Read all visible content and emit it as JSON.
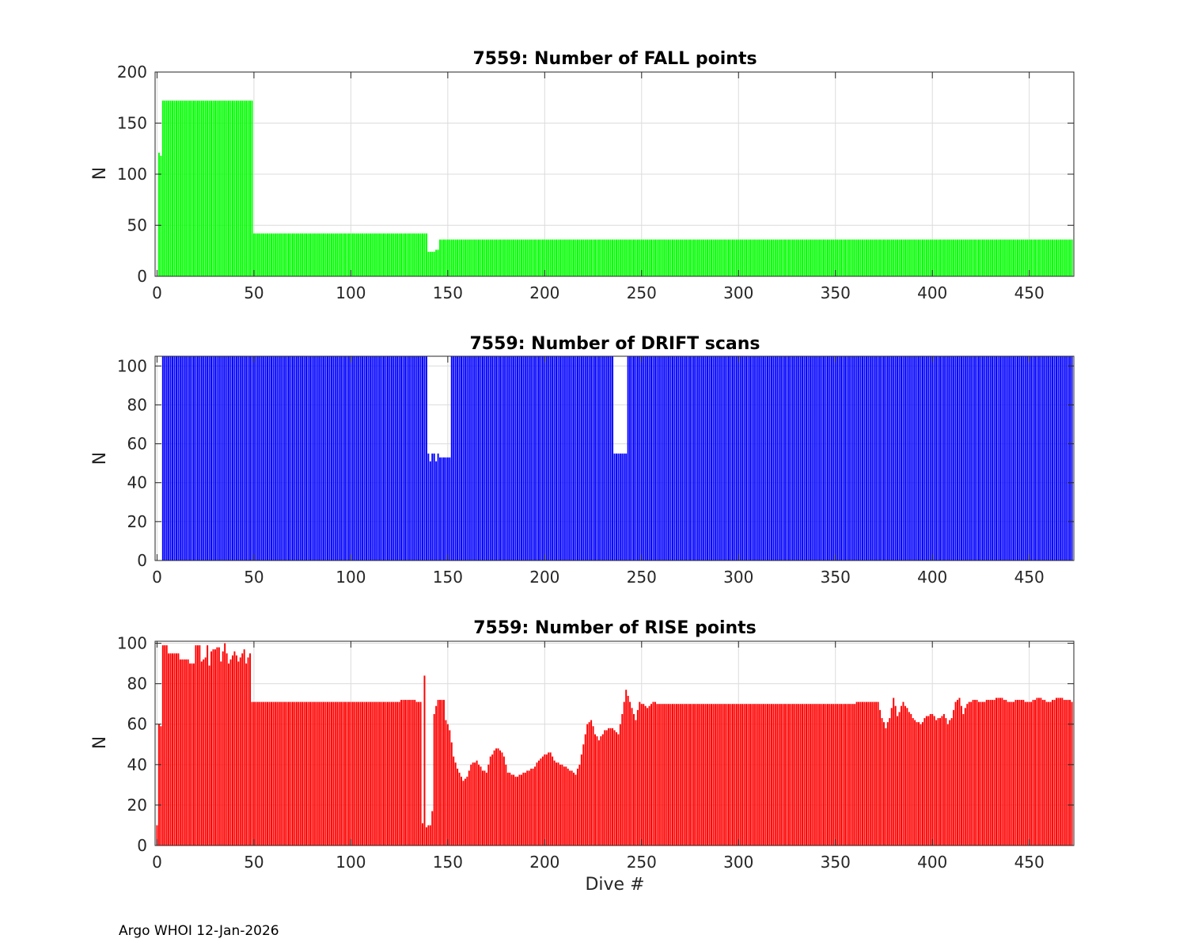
{
  "footer": "Argo WHOI 12-Jan-2026",
  "chart_data": [
    {
      "type": "bar",
      "title": "7559: Number of FALL points",
      "xlabel": "",
      "ylabel": "N",
      "xlim": [
        -1,
        473
      ],
      "ylim": [
        0,
        200
      ],
      "xticks": [
        0,
        50,
        100,
        150,
        200,
        250,
        300,
        350,
        400,
        450
      ],
      "yticks": [
        0,
        50,
        100,
        150,
        200
      ],
      "grid": true,
      "color": "#00ff00",
      "segments": [
        {
          "from": 1,
          "to": 1,
          "value": 121
        },
        {
          "from": 2,
          "to": 2,
          "value": 118
        },
        {
          "from": 3,
          "to": 49,
          "value": 172
        },
        {
          "from": 50,
          "to": 139,
          "value": 42
        },
        {
          "from": 140,
          "to": 143,
          "value": 24
        },
        {
          "from": 144,
          "to": 145,
          "value": 26
        },
        {
          "from": 146,
          "to": 472,
          "value": 36
        }
      ]
    },
    {
      "type": "bar",
      "title": "7559: Number of DRIFT scans",
      "xlabel": "",
      "ylabel": "N",
      "xlim": [
        -1,
        473
      ],
      "ylim": [
        0,
        105
      ],
      "xticks": [
        0,
        50,
        100,
        150,
        200,
        250,
        300,
        350,
        400,
        450
      ],
      "yticks": [
        0,
        20,
        40,
        60,
        80,
        100
      ],
      "grid": true,
      "color": "#0000ff",
      "segments": [
        {
          "from": 3,
          "to": 139,
          "value": 105
        },
        {
          "from": 140,
          "to": 140,
          "value": 55
        },
        {
          "from": 141,
          "to": 141,
          "value": 51
        },
        {
          "from": 142,
          "to": 143,
          "value": 55
        },
        {
          "from": 144,
          "to": 144,
          "value": 51
        },
        {
          "from": 145,
          "to": 145,
          "value": 55
        },
        {
          "from": 146,
          "to": 151,
          "value": 53
        },
        {
          "from": 152,
          "to": 235,
          "value": 105
        },
        {
          "from": 236,
          "to": 242,
          "value": 55
        },
        {
          "from": 243,
          "to": 472,
          "value": 105
        }
      ]
    },
    {
      "type": "bar",
      "title": "7559: Number of RISE points",
      "xlabel": "Dive #",
      "ylabel": "N",
      "xlim": [
        -1,
        473
      ],
      "ylim": [
        0,
        101
      ],
      "xticks": [
        0,
        50,
        100,
        150,
        200,
        250,
        300,
        350,
        400,
        450
      ],
      "yticks": [
        0,
        20,
        40,
        60,
        80,
        100
      ],
      "grid": true,
      "color": "#ff0000",
      "keypoints": [
        [
          0,
          10
        ],
        [
          1,
          60
        ],
        [
          2,
          59
        ],
        [
          3,
          99
        ],
        [
          5,
          99
        ],
        [
          6,
          95
        ],
        [
          11,
          95
        ],
        [
          12,
          92
        ],
        [
          16,
          92
        ],
        [
          17,
          90
        ],
        [
          19,
          90
        ],
        [
          20,
          99
        ],
        [
          22,
          99
        ],
        [
          23,
          91
        ],
        [
          25,
          93
        ],
        [
          26,
          99
        ],
        [
          27,
          89
        ],
        [
          28,
          96
        ],
        [
          32,
          98
        ],
        [
          33,
          91
        ],
        [
          35,
          100
        ],
        [
          37,
          90
        ],
        [
          40,
          96
        ],
        [
          42,
          91
        ],
        [
          45,
          97
        ],
        [
          46,
          90
        ],
        [
          48,
          95
        ],
        [
          49,
          71
        ],
        [
          53,
          71
        ],
        [
          55,
          71
        ],
        [
          100,
          71
        ],
        [
          120,
          71
        ],
        [
          132,
          72
        ],
        [
          134,
          71
        ],
        [
          136,
          71
        ],
        [
          137,
          11
        ],
        [
          138,
          84
        ],
        [
          139,
          9
        ],
        [
          141,
          10
        ],
        [
          142,
          17
        ],
        [
          143,
          65
        ],
        [
          145,
          72
        ],
        [
          148,
          72
        ],
        [
          149,
          62
        ],
        [
          151,
          57
        ],
        [
          153,
          44
        ],
        [
          155,
          38
        ],
        [
          158,
          32
        ],
        [
          160,
          34
        ],
        [
          162,
          40
        ],
        [
          165,
          42
        ],
        [
          168,
          37
        ],
        [
          170,
          36
        ],
        [
          172,
          44
        ],
        [
          175,
          48
        ],
        [
          177,
          47
        ],
        [
          179,
          44
        ],
        [
          181,
          36
        ],
        [
          186,
          34
        ],
        [
          190,
          36
        ],
        [
          194,
          38
        ],
        [
          197,
          42
        ],
        [
          200,
          45
        ],
        [
          203,
          46
        ],
        [
          205,
          42
        ],
        [
          208,
          40
        ],
        [
          212,
          38
        ],
        [
          216,
          35
        ],
        [
          218,
          40
        ],
        [
          220,
          50
        ],
        [
          222,
          60
        ],
        [
          224,
          62
        ],
        [
          226,
          55
        ],
        [
          228,
          52
        ],
        [
          231,
          57
        ],
        [
          235,
          58
        ],
        [
          238,
          55
        ],
        [
          240,
          65
        ],
        [
          242,
          77
        ],
        [
          244,
          71
        ],
        [
          247,
          62
        ],
        [
          249,
          71
        ],
        [
          253,
          68
        ],
        [
          256,
          71
        ],
        [
          258,
          70
        ],
        [
          300,
          70
        ],
        [
          350,
          70
        ],
        [
          372,
          71
        ],
        [
          374,
          63
        ],
        [
          376,
          58
        ],
        [
          378,
          63
        ],
        [
          380,
          73
        ],
        [
          382,
          64
        ],
        [
          385,
          71
        ],
        [
          388,
          66
        ],
        [
          391,
          62
        ],
        [
          394,
          60
        ],
        [
          397,
          64
        ],
        [
          400,
          65
        ],
        [
          402,
          62
        ],
        [
          404,
          63
        ],
        [
          406,
          65
        ],
        [
          408,
          60
        ],
        [
          410,
          63
        ],
        [
          412,
          71
        ],
        [
          414,
          73
        ],
        [
          416,
          65
        ],
        [
          418,
          70
        ],
        [
          421,
          72
        ],
        [
          425,
          71
        ],
        [
          430,
          72
        ],
        [
          435,
          73
        ],
        [
          440,
          71
        ],
        [
          445,
          72
        ],
        [
          450,
          71
        ],
        [
          455,
          73
        ],
        [
          460,
          71
        ],
        [
          465,
          73
        ],
        [
          470,
          72
        ],
        [
          472,
          71
        ]
      ]
    }
  ]
}
